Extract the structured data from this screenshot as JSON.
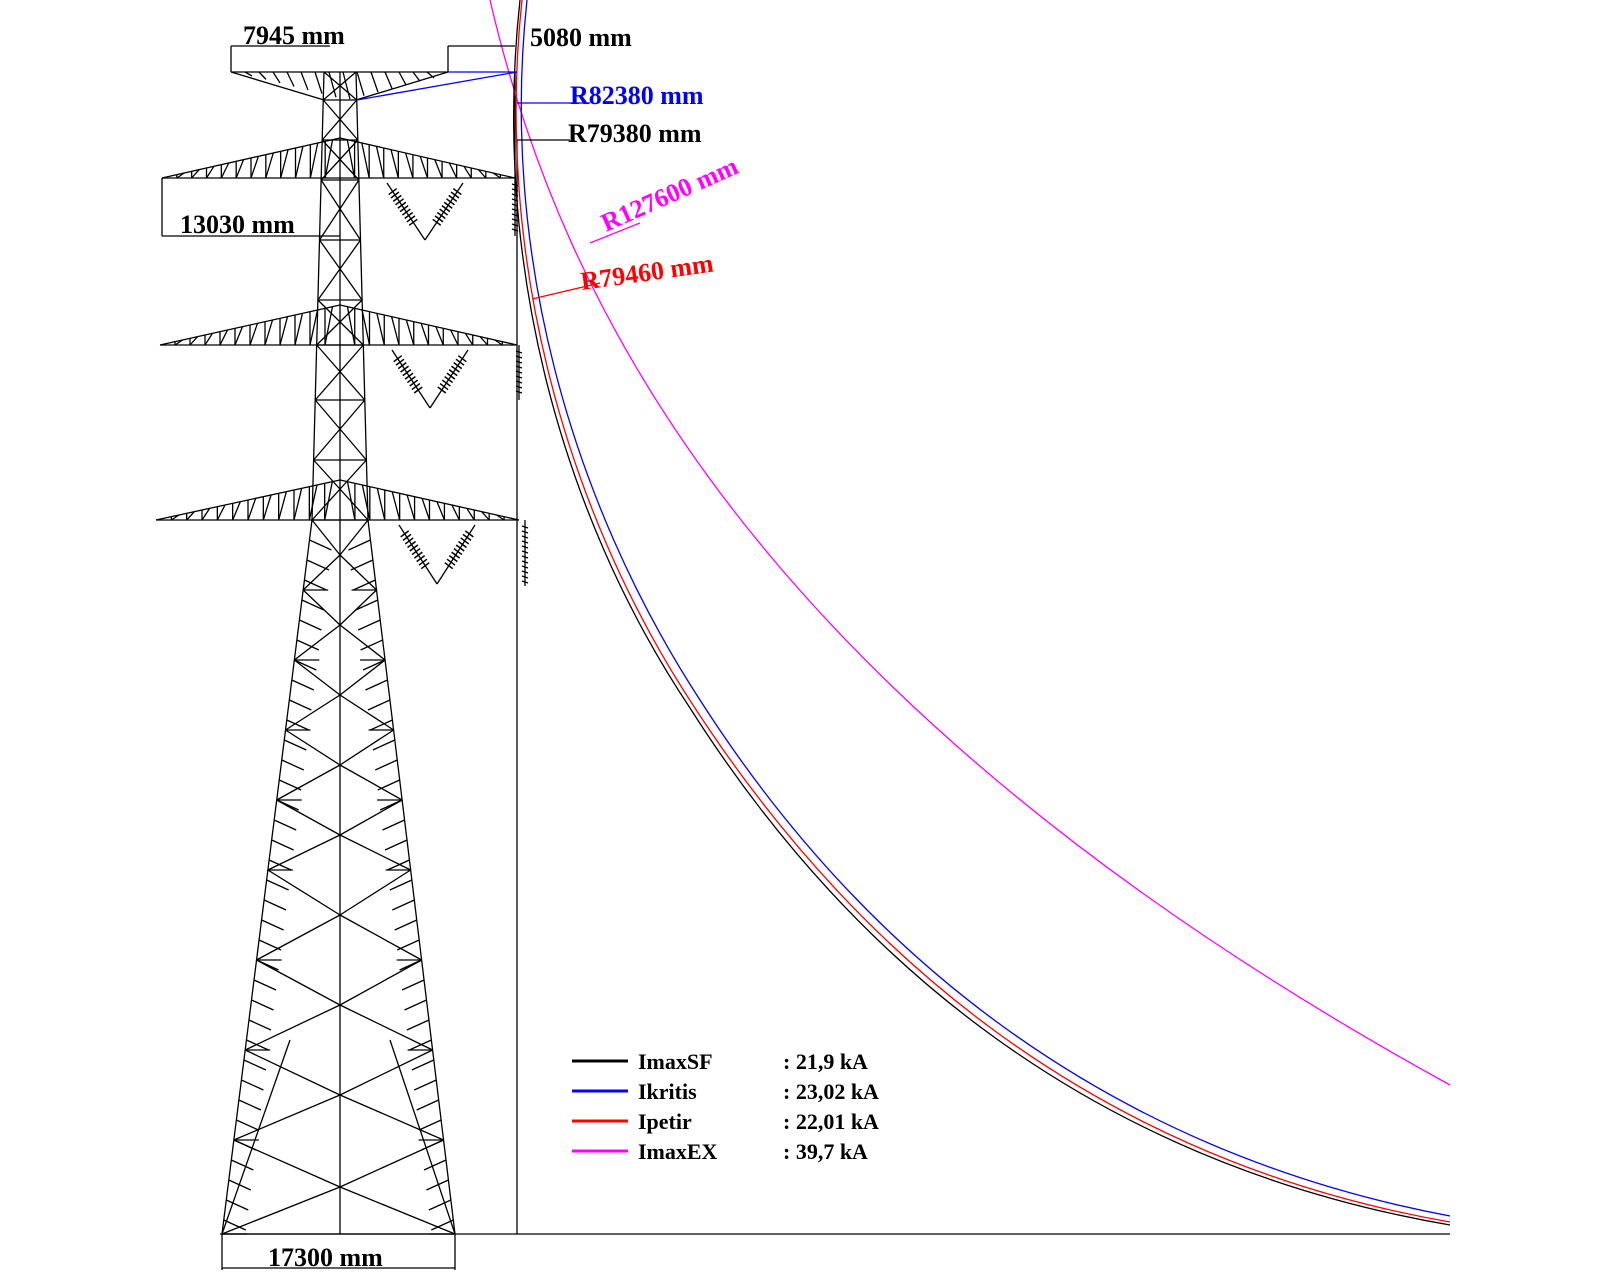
{
  "dimensions": {
    "crossarm_top_width": "7945  mm",
    "shield_clearance": "5080  mm",
    "crossarm_mid_width": "13030  mm",
    "tower_base_width": "17300  mm"
  },
  "radius_labels": {
    "r_ikritis": "R82380  mm",
    "r_imaxsf": "R79380  mm",
    "r_imaxex": "R127600  mm",
    "r_ipetir": "R79460  mm"
  },
  "legend": [
    {
      "name": "ImaxSF",
      "value": ": 21,9 kA",
      "color": "#000000"
    },
    {
      "name": "Ikritis",
      "value": ": 23,02 kA",
      "color": "#0000ff"
    },
    {
      "name": "Ipetir",
      "value": ": 22,01 kA",
      "color": "#ff0000"
    },
    {
      "name": "ImaxEX",
      "value": ": 39,7 kA",
      "color": "#ff00ff"
    }
  ],
  "colors": {
    "tower": "#000000",
    "imaxsf_curve": "#000000",
    "ikritis_curve": "#0000ff",
    "ipetir_curve": "#ff0000",
    "imaxex_curve": "#ff00ff"
  }
}
